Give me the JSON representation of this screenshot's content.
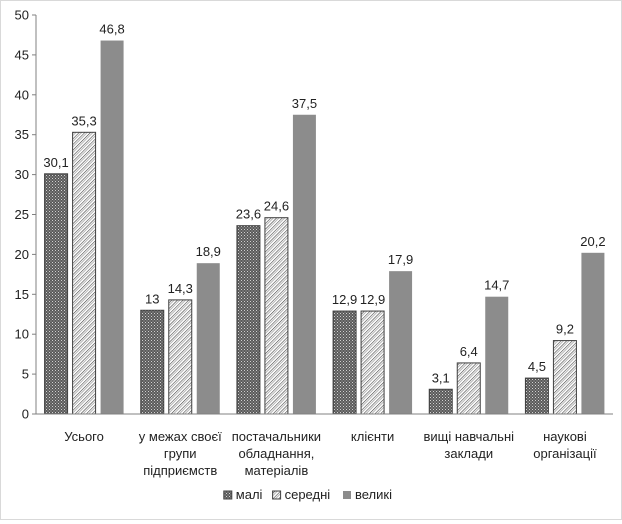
{
  "chart_data": {
    "type": "bar",
    "title": "",
    "xlabel": "",
    "ylabel": "",
    "ylim": [
      0,
      50
    ],
    "yticks": [
      0,
      5,
      10,
      15,
      20,
      25,
      30,
      35,
      40,
      45,
      50
    ],
    "grid": false,
    "legend_position": "bottom",
    "categories": [
      [
        "Усього"
      ],
      [
        "у межах своєї",
        "групи",
        "підприємств"
      ],
      [
        "постачальники",
        "обладнання,",
        "матеріалів"
      ],
      [
        "клієнти"
      ],
      [
        "вищі навчальні",
        "заклади"
      ],
      [
        "наукові",
        "організації"
      ]
    ],
    "series": [
      {
        "name": "малі",
        "values": [
          30.1,
          13,
          23.6,
          12.9,
          3.1,
          4.5
        ],
        "labels": [
          "30,1",
          "13",
          "23,6",
          "12,9",
          "3,1",
          "4,5"
        ],
        "fill": "dots",
        "color": "#595959"
      },
      {
        "name": "середні",
        "values": [
          35.3,
          14.3,
          24.6,
          12.9,
          6.4,
          9.2
        ],
        "labels": [
          "35,3",
          "14,3",
          "24,6",
          "12,9",
          "6,4",
          "9,2"
        ],
        "fill": "hatch",
        "color": "#ffffff"
      },
      {
        "name": "великі",
        "values": [
          46.8,
          18.9,
          37.5,
          17.9,
          14.7,
          20.2
        ],
        "labels": [
          "46,8",
          "18,9",
          "37,5",
          "17,9",
          "14,7",
          "20,2"
        ],
        "fill": "solid",
        "color": "#8c8c8c"
      }
    ]
  }
}
